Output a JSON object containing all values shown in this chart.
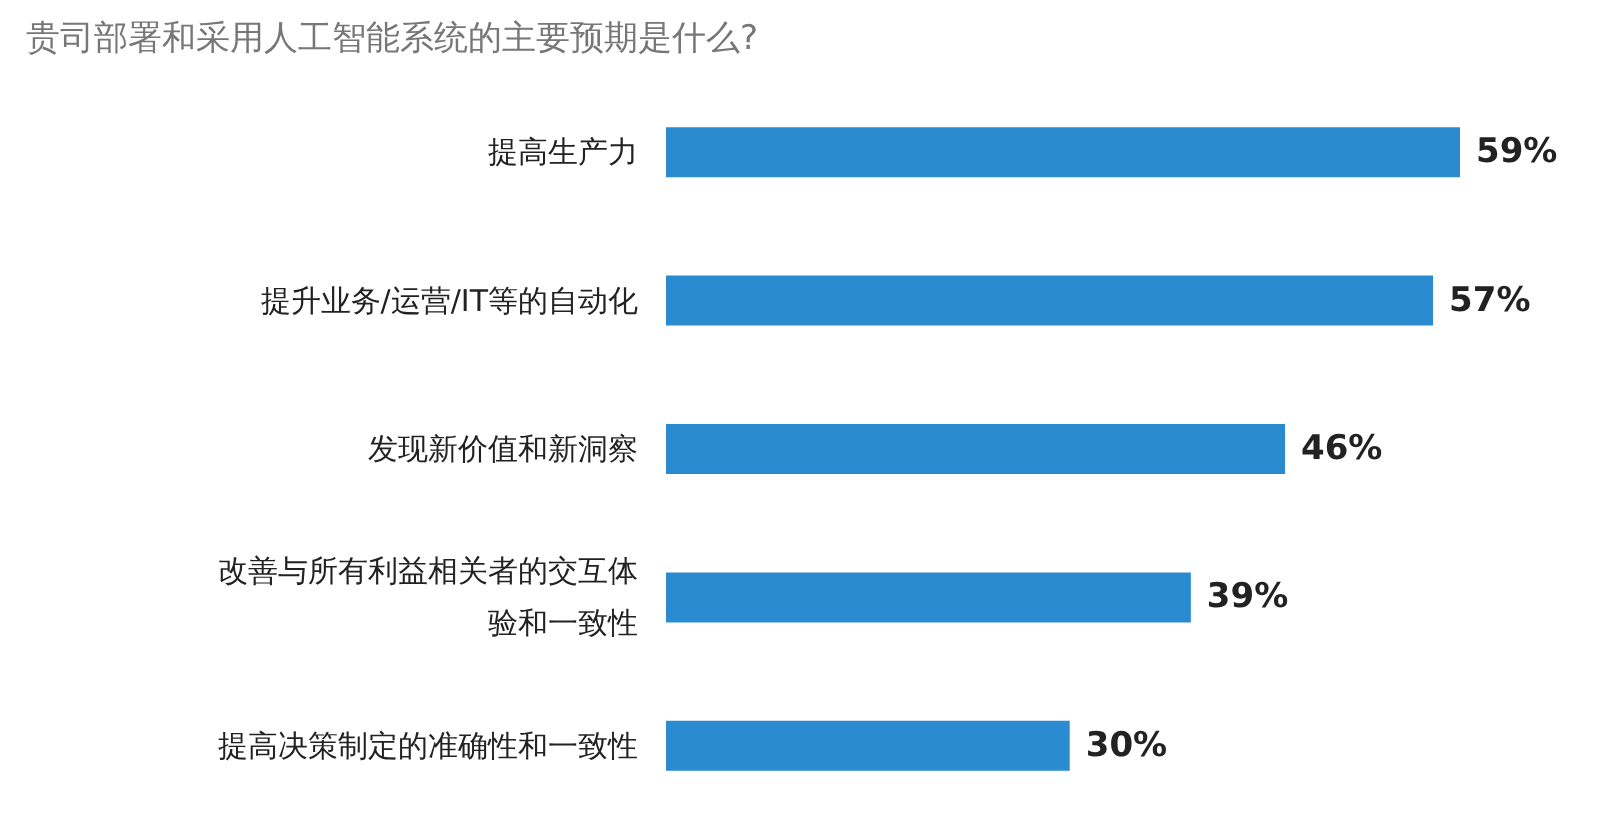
{
  "chart_data": {
    "type": "bar",
    "orientation": "horizontal",
    "title": "贵司部署和采用人工智能系统的主要预期是什么?",
    "categories": [
      "提高生产力",
      "提升业务/运营/IT等的自动化",
      "发现新价值和新洞察",
      "改善与所有利益相关者的交互体验和一致性",
      "提高决策制定的准确性和一致性"
    ],
    "values": [
      59,
      57,
      46,
      39,
      30
    ],
    "color": "#2a8bd0",
    "data_labels": true,
    "value_labels": [
      "59%",
      "57%",
      "46%",
      "39%",
      "30%"
    ]
  }
}
